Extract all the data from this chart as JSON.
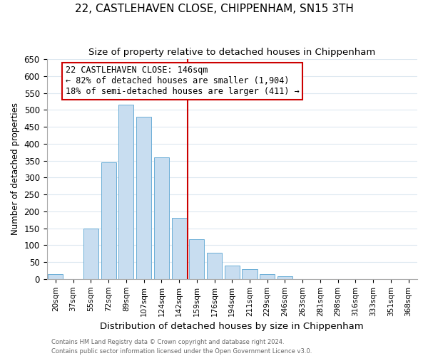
{
  "title": "22, CASTLEHAVEN CLOSE, CHIPPENHAM, SN15 3TH",
  "subtitle": "Size of property relative to detached houses in Chippenham",
  "xlabel": "Distribution of detached houses by size in Chippenham",
  "ylabel": "Number of detached properties",
  "bar_labels": [
    "20sqm",
    "37sqm",
    "55sqm",
    "72sqm",
    "89sqm",
    "107sqm",
    "124sqm",
    "142sqm",
    "159sqm",
    "176sqm",
    "194sqm",
    "211sqm",
    "229sqm",
    "246sqm",
    "263sqm",
    "281sqm",
    "298sqm",
    "316sqm",
    "333sqm",
    "351sqm",
    "368sqm"
  ],
  "bar_values": [
    14,
    0,
    150,
    345,
    515,
    480,
    360,
    180,
    118,
    78,
    40,
    30,
    14,
    8,
    0,
    0,
    0,
    0,
    0,
    0,
    0
  ],
  "bar_color": "#c8ddf0",
  "bar_edge_color": "#6baed6",
  "vline_x_idx": 7.5,
  "vline_color": "#cc0000",
  "ylim": [
    0,
    650
  ],
  "yticks": [
    0,
    50,
    100,
    150,
    200,
    250,
    300,
    350,
    400,
    450,
    500,
    550,
    600,
    650
  ],
  "annotation_title": "22 CASTLEHAVEN CLOSE: 146sqm",
  "annotation_line1": "← 82% of detached houses are smaller (1,904)",
  "annotation_line2": "18% of semi-detached houses are larger (411) →",
  "annotation_box_color": "#ffffff",
  "annotation_box_edge": "#cc0000",
  "footer1": "Contains HM Land Registry data © Crown copyright and database right 2024.",
  "footer2": "Contains public sector information licensed under the Open Government Licence v3.0.",
  "bg_color": "#ffffff",
  "grid_color": "#dde8f0",
  "title_fontsize": 11,
  "subtitle_fontsize": 9.5
}
